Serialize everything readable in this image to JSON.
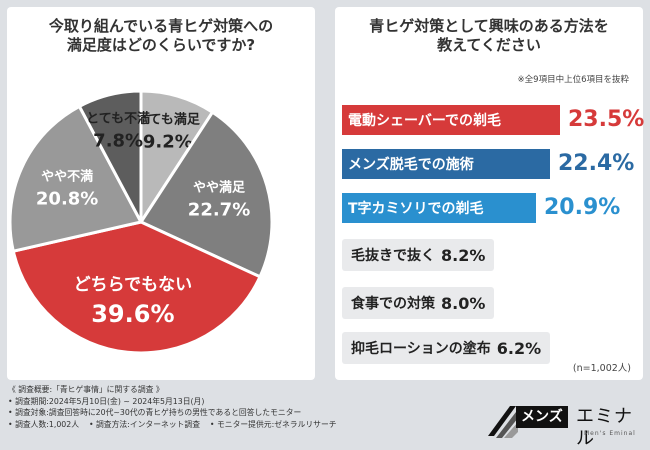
{
  "left_panel": {
    "title": "今取り組んでいる青ヒゲ対策への\n満足度はどのくらいですか?"
  },
  "right_panel": {
    "title": "青ヒゲ対策として興味のある方法を\n教えてください",
    "note": "※全9項目中上位6項目を抜粋",
    "n_note": "(n=1,002人)"
  },
  "chart_data": [
    {
      "type": "pie",
      "title": "今取り組んでいる青ヒゲ対策への満足度はどのくらいですか?",
      "categories": [
        "とても満足",
        "やや満足",
        "どちらでもない",
        "やや不満",
        "とても不満"
      ],
      "values": [
        9.2,
        22.7,
        39.6,
        20.8,
        7.8
      ],
      "labels": [
        "9.2%",
        "22.7%",
        "39.6%",
        "20.8%",
        "7.8%"
      ],
      "colors": [
        "#b9b9b9",
        "#7f7f7f",
        "#d63a3a",
        "#999999",
        "#5d5d5d"
      ],
      "label_colors": [
        "#222222",
        "#ffffff",
        "#ffffff",
        "#ffffff",
        "#222222"
      ]
    },
    {
      "type": "bar",
      "title": "青ヒゲ対策として興味のある方法を教えてください",
      "categories": [
        "電動シェーバーでの剃毛",
        "メンズ脱毛での施術",
        "T字カミソリでの剃毛",
        "毛抜きで抜く",
        "食事での対策",
        "抑毛ローションの塗布"
      ],
      "values": [
        23.5,
        22.4,
        20.9,
        8.2,
        8.0,
        6.2
      ],
      "labels": [
        "23.5%",
        "22.4%",
        "20.9%",
        "8.2%",
        "8.0%",
        "6.2%"
      ],
      "colors": [
        "#d63a3a",
        "#2b6aa3",
        "#2a90cf",
        "#e9eaec",
        "#e9eaec",
        "#e9eaec"
      ],
      "value_colors": [
        "#d63a3a",
        "#2b6aa3",
        "#2a90cf",
        "#222222",
        "#222222",
        "#222222"
      ]
    }
  ],
  "survey": {
    "heading": "《 調査概要:「青ヒゲ事情」に関する調査 》",
    "period": "• 調査期間:2024年5月10日(金) ~ 2024年5月13日(月)",
    "target": "• 調査対象:調査回答時に20代~30代の青ヒゲ持ちの男性であると回答したモニター",
    "count": "• 調査人数:1,002人",
    "method": "• 調査方法:インターネット調査",
    "provider": "• モニター提供元:ゼネラルリサーチ"
  },
  "logo": {
    "mens": "メンズ",
    "emi": "エミナル",
    "sub": "Men's Eminal"
  }
}
